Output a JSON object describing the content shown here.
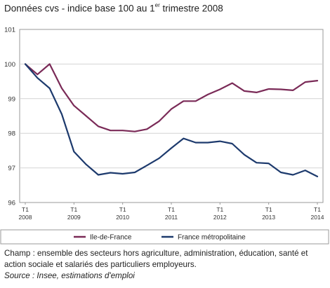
{
  "title": {
    "prefix": "Données cvs - indice base 100 au 1",
    "superscript": "er",
    "suffix": " trimestre 2008"
  },
  "chart_data": {
    "type": "line",
    "title": "Données cvs - indice base 100 au 1er trimestre 2008",
    "xlabel": "",
    "ylabel": "",
    "ylim": [
      96,
      101
    ],
    "yticks": [
      "96",
      "97",
      "98",
      "99",
      "100",
      "101"
    ],
    "xticks": [
      {
        "index": 0,
        "top": "T1",
        "bottom": "2008"
      },
      {
        "index": 4,
        "top": "T1",
        "bottom": "2009"
      },
      {
        "index": 8,
        "top": "T1",
        "bottom": "2010"
      },
      {
        "index": 12,
        "top": "T1",
        "bottom": "2011"
      },
      {
        "index": 16,
        "top": "T1",
        "bottom": "2012"
      },
      {
        "index": 20,
        "top": "T1",
        "bottom": "2013"
      },
      {
        "index": 24,
        "top": "T1",
        "bottom": "2014"
      }
    ],
    "x": [
      "2008T1",
      "2008T2",
      "2008T3",
      "2008T4",
      "2009T1",
      "2009T2",
      "2009T3",
      "2009T4",
      "2010T1",
      "2010T2",
      "2010T3",
      "2010T4",
      "2011T1",
      "2011T2",
      "2011T3",
      "2011T4",
      "2012T1",
      "2012T2",
      "2012T3",
      "2012T4",
      "2013T1",
      "2013T2",
      "2013T3",
      "2013T4",
      "2014T1"
    ],
    "series": [
      {
        "name": "Ile-de-France",
        "color": "#7a2a57",
        "values": [
          100.0,
          99.7,
          100.0,
          99.3,
          98.8,
          98.5,
          98.2,
          98.08,
          98.08,
          98.05,
          98.12,
          98.35,
          98.7,
          98.93,
          98.93,
          99.12,
          99.27,
          99.45,
          99.22,
          99.18,
          99.28,
          99.27,
          99.24,
          99.48,
          99.52
        ]
      },
      {
        "name": "France métropolitaine",
        "color": "#1d3a6d",
        "values": [
          100.0,
          99.6,
          99.3,
          98.55,
          97.47,
          97.1,
          96.8,
          96.86,
          96.83,
          96.87,
          97.07,
          97.28,
          97.57,
          97.85,
          97.73,
          97.73,
          97.77,
          97.7,
          97.38,
          97.15,
          97.13,
          96.87,
          96.8,
          96.93,
          96.75
        ]
      }
    ],
    "grid": true,
    "legend": "bottom"
  },
  "notes": {
    "champ": "Champ : ensemble des secteurs hors agriculture, administration, éducation, santé et action sociale et salariés des particuliers employeurs.",
    "source": "Source : Insee, estimations d'emploi"
  }
}
